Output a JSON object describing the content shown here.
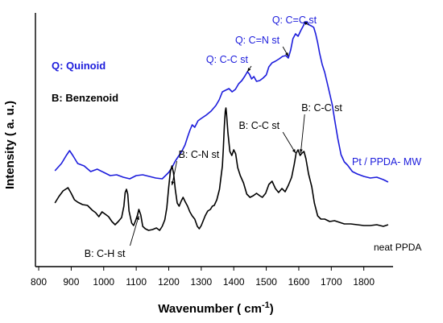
{
  "chart_data": {
    "type": "line",
    "title": "",
    "xlabel": "Wavenumber ( cm",
    "xlabel_sup": "-1",
    "xlabel_tail": ")",
    "ylabel": "Intensity ( a. u.)",
    "xlim": [
      790,
      1890
    ],
    "xticks": [
      800,
      900,
      1000,
      1100,
      1200,
      1300,
      1400,
      1500,
      1600,
      1700,
      1800
    ],
    "y_tick_labels": false,
    "grid": false,
    "legend": {
      "items": [
        {
          "text": "Q: Quinoid",
          "color": "#1c1cdc"
        },
        {
          "text": "B: Benzenoid",
          "color": "#000000"
        }
      ],
      "placement": "top-left"
    },
    "series": [
      {
        "name": "Pt / PPDA- MW",
        "color": "#1c1cdc",
        "points": [
          [
            850,
            212
          ],
          [
            870,
            203
          ],
          [
            885,
            193
          ],
          [
            895,
            187
          ],
          [
            905,
            193
          ],
          [
            920,
            203
          ],
          [
            940,
            206
          ],
          [
            960,
            213
          ],
          [
            980,
            210
          ],
          [
            1000,
            214
          ],
          [
            1020,
            218
          ],
          [
            1040,
            217
          ],
          [
            1060,
            220
          ],
          [
            1080,
            222
          ],
          [
            1100,
            218
          ],
          [
            1120,
            217
          ],
          [
            1140,
            219
          ],
          [
            1160,
            221
          ],
          [
            1180,
            222
          ],
          [
            1190,
            218
          ],
          [
            1200,
            214
          ],
          [
            1210,
            208
          ],
          [
            1220,
            200
          ],
          [
            1230,
            194
          ],
          [
            1240,
            188
          ],
          [
            1250,
            180
          ],
          [
            1258,
            170
          ],
          [
            1265,
            162
          ],
          [
            1272,
            155
          ],
          [
            1280,
            158
          ],
          [
            1290,
            150
          ],
          [
            1300,
            147
          ],
          [
            1315,
            143
          ],
          [
            1330,
            138
          ],
          [
            1345,
            131
          ],
          [
            1355,
            124
          ],
          [
            1365,
            114
          ],
          [
            1375,
            112
          ],
          [
            1385,
            110
          ],
          [
            1395,
            114
          ],
          [
            1405,
            111
          ],
          [
            1415,
            104
          ],
          [
            1425,
            100
          ],
          [
            1435,
            94
          ],
          [
            1442,
            89
          ],
          [
            1448,
            92
          ],
          [
            1455,
            98
          ],
          [
            1462,
            95
          ],
          [
            1470,
            101
          ],
          [
            1480,
            100
          ],
          [
            1490,
            97
          ],
          [
            1500,
            93
          ],
          [
            1508,
            83
          ],
          [
            1518,
            78
          ],
          [
            1528,
            76
          ],
          [
            1540,
            73
          ],
          [
            1550,
            70
          ],
          [
            1560,
            69
          ],
          [
            1568,
            72
          ],
          [
            1575,
            62
          ],
          [
            1582,
            48
          ],
          [
            1590,
            42
          ],
          [
            1598,
            45
          ],
          [
            1606,
            38
          ],
          [
            1614,
            32
          ],
          [
            1620,
            27
          ],
          [
            1626,
            27
          ],
          [
            1632,
            31
          ],
          [
            1638,
            32
          ],
          [
            1646,
            34
          ],
          [
            1652,
            42
          ],
          [
            1658,
            53
          ],
          [
            1664,
            66
          ],
          [
            1672,
            80
          ],
          [
            1680,
            90
          ],
          [
            1688,
            104
          ],
          [
            1695,
            116
          ],
          [
            1703,
            130
          ],
          [
            1711,
            150
          ],
          [
            1720,
            172
          ],
          [
            1730,
            192
          ],
          [
            1740,
            201
          ],
          [
            1750,
            205
          ],
          [
            1765,
            213
          ],
          [
            1780,
            216
          ],
          [
            1800,
            219
          ],
          [
            1820,
            221
          ],
          [
            1840,
            220
          ],
          [
            1860,
            223
          ],
          [
            1875,
            226
          ]
        ]
      },
      {
        "name": "neat PPDA",
        "color": "#000000",
        "points": [
          [
            850,
            252
          ],
          [
            862,
            244
          ],
          [
            875,
            237
          ],
          [
            890,
            233
          ],
          [
            900,
            240
          ],
          [
            910,
            248
          ],
          [
            920,
            251
          ],
          [
            935,
            254
          ],
          [
            950,
            255
          ],
          [
            965,
            261
          ],
          [
            975,
            264
          ],
          [
            985,
            269
          ],
          [
            995,
            263
          ],
          [
            1005,
            266
          ],
          [
            1015,
            269
          ],
          [
            1025,
            275
          ],
          [
            1035,
            279
          ],
          [
            1045,
            275
          ],
          [
            1055,
            270
          ],
          [
            1062,
            256
          ],
          [
            1066,
            239
          ],
          [
            1070,
            235
          ],
          [
            1074,
            241
          ],
          [
            1078,
            262
          ],
          [
            1086,
            277
          ],
          [
            1092,
            280
          ],
          [
            1098,
            274
          ],
          [
            1104,
            267
          ],
          [
            1108,
            260
          ],
          [
            1114,
            267
          ],
          [
            1120,
            281
          ],
          [
            1128,
            284
          ],
          [
            1138,
            286
          ],
          [
            1150,
            285
          ],
          [
            1162,
            283
          ],
          [
            1172,
            286
          ],
          [
            1180,
            281
          ],
          [
            1188,
            273
          ],
          [
            1194,
            258
          ],
          [
            1200,
            232
          ],
          [
            1205,
            213
          ],
          [
            1210,
            206
          ],
          [
            1215,
            215
          ],
          [
            1220,
            235
          ],
          [
            1226,
            252
          ],
          [
            1232,
            256
          ],
          [
            1238,
            250
          ],
          [
            1244,
            245
          ],
          [
            1250,
            250
          ],
          [
            1258,
            256
          ],
          [
            1265,
            263
          ],
          [
            1272,
            268
          ],
          [
            1280,
            272
          ],
          [
            1288,
            281
          ],
          [
            1294,
            284
          ],
          [
            1300,
            280
          ],
          [
            1306,
            274
          ],
          [
            1312,
            268
          ],
          [
            1320,
            262
          ],
          [
            1328,
            260
          ],
          [
            1334,
            256
          ],
          [
            1340,
            255
          ],
          [
            1348,
            248
          ],
          [
            1356,
            235
          ],
          [
            1360,
            222
          ],
          [
            1365,
            206
          ],
          [
            1368,
            184
          ],
          [
            1371,
            157
          ],
          [
            1374,
            138
          ],
          [
            1376,
            134
          ],
          [
            1378,
            142
          ],
          [
            1382,
            165
          ],
          [
            1388,
            188
          ],
          [
            1394,
            193
          ],
          [
            1400,
            186
          ],
          [
            1406,
            191
          ],
          [
            1412,
            208
          ],
          [
            1420,
            218
          ],
          [
            1430,
            227
          ],
          [
            1440,
            241
          ],
          [
            1450,
            245
          ],
          [
            1460,
            243
          ],
          [
            1470,
            240
          ],
          [
            1480,
            243
          ],
          [
            1488,
            245
          ],
          [
            1498,
            240
          ],
          [
            1508,
            229
          ],
          [
            1518,
            225
          ],
          [
            1528,
            234
          ],
          [
            1538,
            239
          ],
          [
            1548,
            234
          ],
          [
            1558,
            238
          ],
          [
            1568,
            230
          ],
          [
            1578,
            220
          ],
          [
            1586,
            204
          ],
          [
            1592,
            190
          ],
          [
            1598,
            186
          ],
          [
            1604,
            193
          ],
          [
            1610,
            190
          ],
          [
            1616,
            188
          ],
          [
            1622,
            197
          ],
          [
            1630,
            216
          ],
          [
            1640,
            232
          ],
          [
            1648,
            252
          ],
          [
            1658,
            268
          ],
          [
            1668,
            272
          ],
          [
            1680,
            272
          ],
          [
            1695,
            275
          ],
          [
            1710,
            274
          ],
          [
            1725,
            276
          ],
          [
            1740,
            278
          ],
          [
            1760,
            278
          ],
          [
            1780,
            279
          ],
          [
            1800,
            280
          ],
          [
            1820,
            280
          ],
          [
            1840,
            279
          ],
          [
            1860,
            281
          ],
          [
            1875,
            279
          ]
        ]
      }
    ],
    "annotations": [
      {
        "text": "Q: C=C st",
        "color": "#1c1cdc",
        "anchor": [
          1615,
          27
        ],
        "arrow_from": [
          1630,
          31
        ]
      },
      {
        "text": "Q: C=N st",
        "color": "#1c1cdc",
        "anchor": [
          1568,
          70
        ],
        "arrow_from": [
          1551,
          58
        ]
      },
      {
        "text": "Q: C-C st",
        "color": "#1c1cdc",
        "anchor": [
          1442,
          89
        ],
        "arrow_from": [
          1454,
          82
        ]
      },
      {
        "text": "B: C-N st",
        "color": "#000000",
        "anchor": [
          1210,
          230
        ],
        "arrow_from": [
          1225,
          200
        ]
      },
      {
        "text": "B: C-C st",
        "color": "#000000",
        "anchor": [
          1590,
          190
        ],
        "arrow_from": [
          1551,
          164
        ]
      },
      {
        "text": "B: C-C st",
        "color": "#000000",
        "anchor": [
          1606,
          190
        ],
        "arrow_from": [
          1618,
          142
        ]
      },
      {
        "text": "B: C-H st",
        "color": "#000000",
        "anchor": [
          1108,
          268
        ],
        "arrow_from": [
          1081,
          305
        ]
      }
    ]
  }
}
